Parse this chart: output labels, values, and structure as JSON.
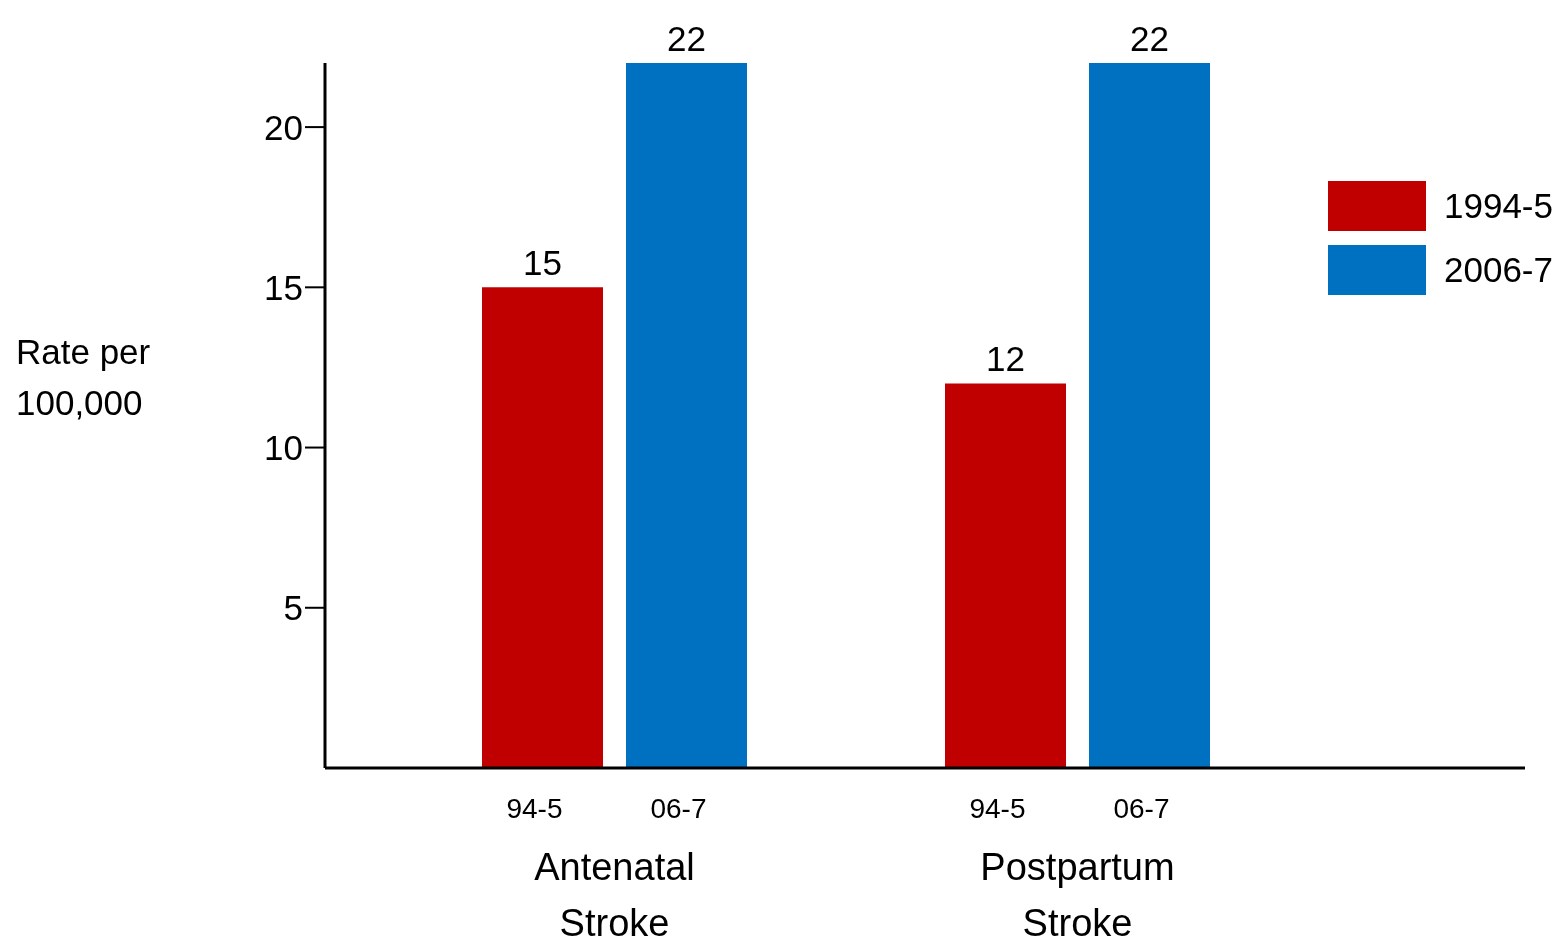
{
  "chart_data": {
    "type": "bar",
    "ylabel": "Rate per 100,000",
    "categories": [
      "Antenatal Stroke",
      "Postpartum Stroke"
    ],
    "series": [
      {
        "name": "1994-5",
        "color": "#c00000",
        "values": [
          15,
          12
        ]
      },
      {
        "name": "2006-7",
        "color": "#0070c0",
        "values": [
          22,
          22
        ]
      }
    ],
    "annotations": [
      "94-5",
      "06-7",
      "94-5",
      "06-7"
    ],
    "ylim": [
      0,
      22
    ],
    "yticks": [
      5,
      10,
      15,
      20
    ],
    "grid": false,
    "legend": "top right",
    "data_labels": true
  }
}
